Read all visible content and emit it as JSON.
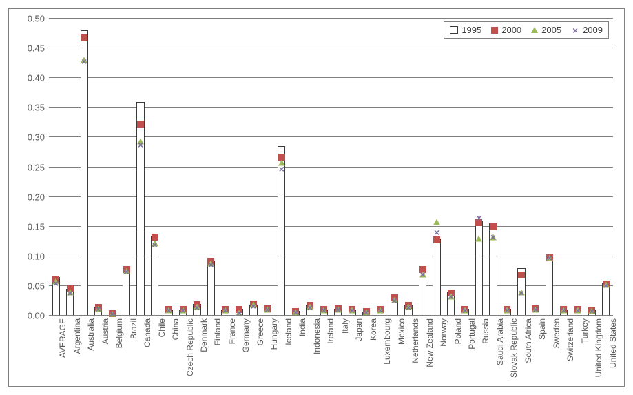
{
  "chart": {
    "type": "bar-with-markers",
    "background_color": "#ffffff",
    "panel_border_color": "#808080",
    "grid_color": "#808080",
    "axis_label_color": "#595959",
    "axis_fontsize": 13,
    "xlabel_fontsize": 12,
    "ylim": [
      0,
      0.5
    ],
    "ytick_step": 0.05,
    "yticks": [
      "0.00",
      "0.05",
      "0.10",
      "0.15",
      "0.20",
      "0.25",
      "0.30",
      "0.35",
      "0.40",
      "0.45",
      "0.50"
    ],
    "bar_fill": "#ffffff",
    "bar_border": "#3b3b3b",
    "series": [
      {
        "name": "1995",
        "marker": "open-box",
        "label": "1995"
      },
      {
        "name": "2000",
        "marker": "square",
        "color": "#c0504d",
        "label": "2000"
      },
      {
        "name": "2005",
        "marker": "triangle",
        "color": "#9bbb59",
        "label": "2005"
      },
      {
        "name": "2009",
        "marker": "x",
        "color": "#7d6fa0",
        "label": "2009"
      }
    ],
    "categories": [
      "AVERAGE",
      "Argentina",
      "Australia",
      "Austria",
      "Belgium",
      "Brazil",
      "Canada",
      "Chile",
      "China",
      "Czech Republic",
      "Denmark",
      "Finland",
      "France",
      "Germany",
      "Greece",
      "Hungary",
      "Iceland",
      "India",
      "Indonesia",
      "Ireland",
      "Italy",
      "Japan",
      "Korea",
      "Luxembourg",
      "Mexico",
      "Netherlands",
      "New Zealand",
      "Norway",
      "Poland",
      "Portugal",
      "Russia",
      "Saudi Arabia",
      "Slovak Republic",
      "South Africa",
      "Spain",
      "Sweden",
      "Switzerland",
      "Turkey",
      "United Kingdom",
      "United States"
    ],
    "values_1995": [
      0.065,
      0.045,
      0.48,
      0.015,
      0.005,
      0.078,
      0.36,
      0.135,
      0.01,
      0.01,
      0.02,
      0.093,
      0.01,
      0.012,
      0.018,
      0.013,
      0.285,
      0.008,
      0.018,
      0.01,
      0.012,
      0.01,
      0.007,
      0.01,
      0.03,
      0.018,
      0.08,
      0.13,
      0.04,
      0.012,
      0.16,
      0.155,
      0.012,
      0.08,
      0.013,
      0.098,
      0.01,
      0.01,
      0.01,
      0.055
    ],
    "values_2000": [
      0.062,
      0.045,
      0.468,
      0.014,
      0.004,
      0.078,
      0.323,
      0.132,
      0.01,
      0.01,
      0.018,
      0.092,
      0.01,
      0.01,
      0.02,
      0.012,
      0.267,
      0.007,
      0.017,
      0.01,
      0.012,
      0.01,
      0.007,
      0.01,
      0.03,
      0.017,
      0.078,
      0.128,
      0.038,
      0.01,
      0.157,
      0.15,
      0.01,
      0.068,
      0.012,
      0.097,
      0.01,
      0.01,
      0.009,
      0.053
    ],
    "values_2005": [
      0.058,
      0.04,
      0.43,
      0.012,
      0.004,
      0.075,
      0.293,
      0.122,
      0.009,
      0.009,
      0.015,
      0.088,
      0.009,
      0.005,
      0.018,
      0.011,
      0.258,
      0.006,
      0.015,
      0.009,
      0.011,
      0.009,
      0.006,
      0.009,
      0.027,
      0.015,
      0.07,
      0.158,
      0.033,
      0.009,
      0.13,
      0.132,
      0.009,
      0.04,
      0.011,
      0.097,
      0.009,
      0.009,
      0.008,
      0.052
    ],
    "values_2009": [
      0.055,
      0.038,
      0.428,
      0.012,
      0.004,
      0.074,
      0.288,
      0.12,
      0.009,
      0.009,
      0.014,
      0.086,
      0.009,
      0.005,
      0.016,
      0.011,
      0.247,
      0.006,
      0.014,
      0.009,
      0.01,
      0.009,
      0.006,
      0.009,
      0.025,
      0.014,
      0.07,
      0.14,
      0.032,
      0.009,
      0.165,
      0.132,
      0.009,
      0.038,
      0.011,
      0.097,
      0.009,
      0.009,
      0.008,
      0.051
    ],
    "legend": {
      "position": "top-right",
      "border_color": "#808080",
      "background_color": "#ffffff",
      "fontsize": 13
    }
  }
}
